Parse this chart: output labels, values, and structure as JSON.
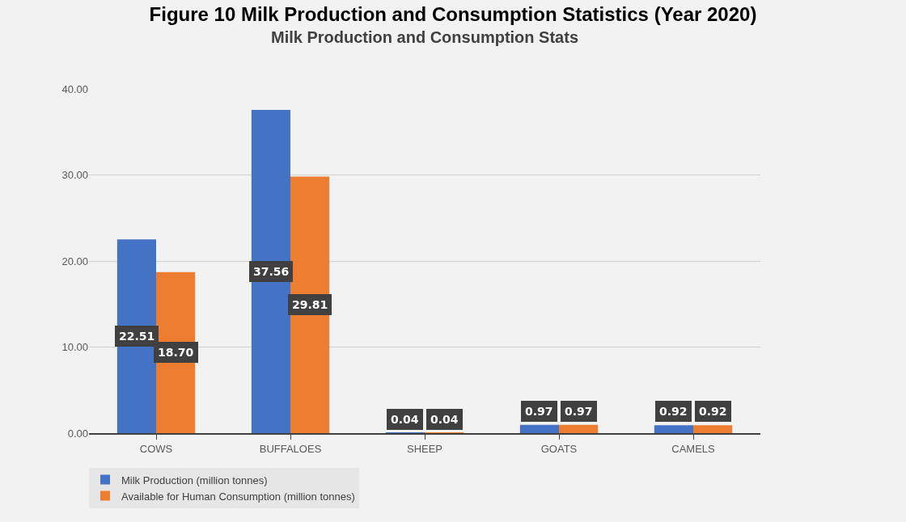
{
  "chart_data": {
    "type": "bar",
    "title": "Figure 10 Milk Production and Consumption Statistics (Year 2020)",
    "subtitle": "Milk Production and Consumption Stats",
    "categories": [
      "COWS",
      "BUFFALOES",
      "SHEEP",
      "GOATS",
      "CAMELS"
    ],
    "series": [
      {
        "name": "Milk Production (million tonnes)",
        "color": "#4472c4",
        "values": [
          22.51,
          37.56,
          0.04,
          0.97,
          0.92
        ],
        "value_labels": [
          "22.51",
          "37.56",
          "0.04",
          "0.97",
          "0.92"
        ]
      },
      {
        "name": "Available for Human Consumption (million tonnes)",
        "color": "#ed7d31",
        "values": [
          18.7,
          29.81,
          0.04,
          0.97,
          0.92
        ],
        "value_labels": [
          "18.70",
          "29.81",
          "0.04",
          "0.97",
          "0.92"
        ]
      }
    ],
    "ylim": [
      0,
      40
    ],
    "yticks": [
      {
        "value": 0,
        "label": "0.00"
      },
      {
        "value": 10,
        "label": "10.00"
      },
      {
        "value": 20,
        "label": "20.00"
      },
      {
        "value": 30,
        "label": "30.00"
      },
      {
        "value": 40,
        "label": "40.00"
      }
    ],
    "grid": "y",
    "legend": "bottom left"
  }
}
